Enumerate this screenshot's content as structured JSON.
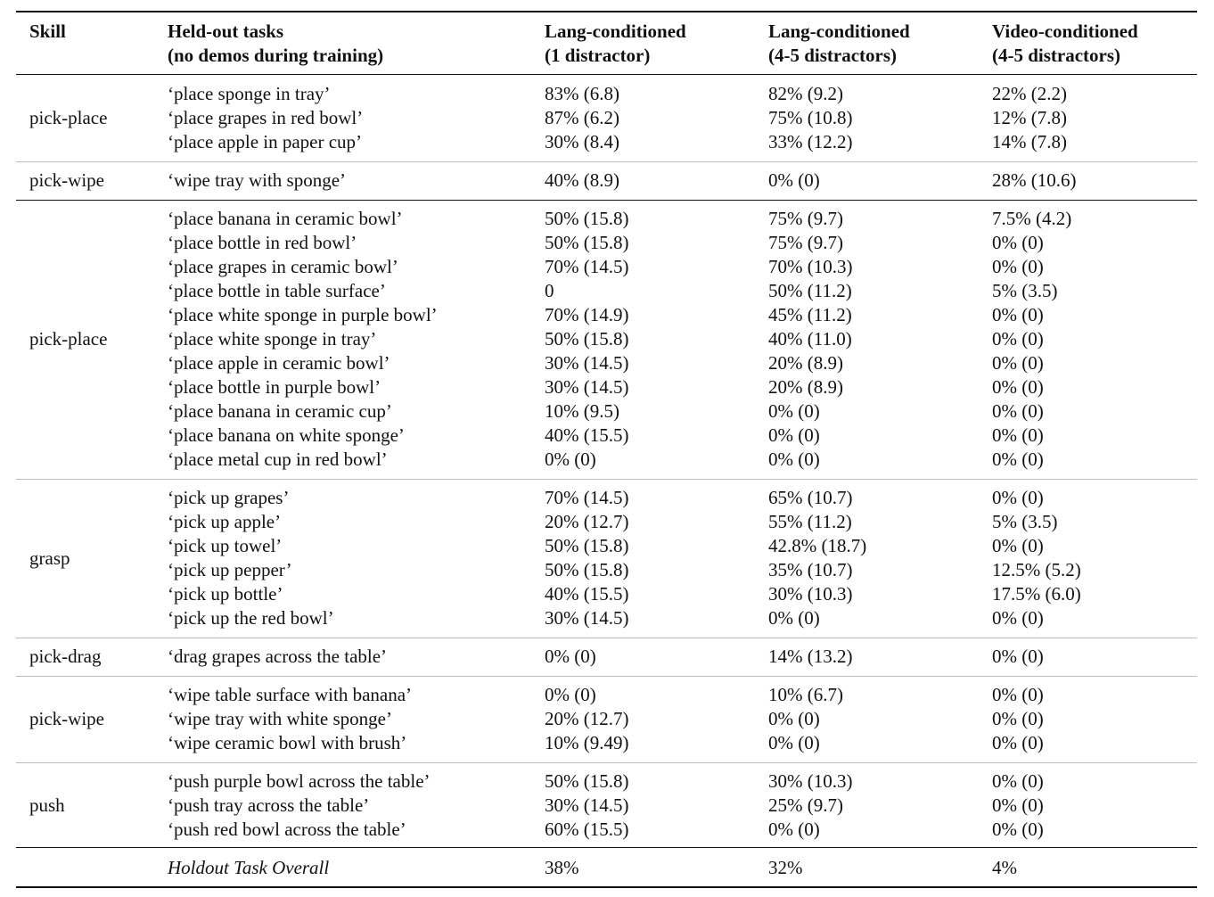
{
  "headers": {
    "skill": "Skill",
    "tasks_line1": "Held-out tasks",
    "tasks_line2": "(no demos during training)",
    "lang1_line1": "Lang-conditioned",
    "lang1_line2": "(1 distractor)",
    "lang45_line1": "Lang-conditioned",
    "lang45_line2": "(4-5 distractors)",
    "video_line1": "Video-conditioned",
    "video_line2": "(4-5 distractors)"
  },
  "groups": [
    {
      "skill": "pick-place",
      "rows": [
        [
          "‘place sponge in tray’",
          "83% (6.8)",
          "82% (9.2)",
          "22% (2.2)"
        ],
        [
          "‘place grapes in red bowl’",
          "87% (6.2)",
          "75% (10.8)",
          "12% (7.8)"
        ],
        [
          "‘place apple in paper cup’",
          "30% (8.4)",
          "33% (12.2)",
          "14% (7.8)"
        ]
      ]
    },
    {
      "skill": "pick-wipe",
      "rows": [
        [
          "‘wipe tray with sponge’",
          "40% (8.9)",
          "0% (0)",
          "28% (10.6)"
        ]
      ]
    },
    {
      "skill": "pick-place",
      "rows": [
        [
          "‘place banana in ceramic bowl’",
          "50% (15.8)",
          "75% (9.7)",
          "7.5% (4.2)"
        ],
        [
          "‘place bottle in red bowl’",
          "50% (15.8)",
          "75% (9.7)",
          "0% (0)"
        ],
        [
          "‘place grapes in ceramic bowl’",
          "70% (14.5)",
          "70% (10.3)",
          "0% (0)"
        ],
        [
          "‘place bottle in table surface’",
          "0",
          "50% (11.2)",
          "5% (3.5)"
        ],
        [
          "‘place white sponge in purple bowl’",
          "70% (14.9)",
          "45% (11.2)",
          "0% (0)"
        ],
        [
          "‘place white sponge in tray’",
          "50% (15.8)",
          "40% (11.0)",
          "0% (0)"
        ],
        [
          "‘place apple in ceramic bowl’",
          "30% (14.5)",
          "20% (8.9)",
          "0% (0)"
        ],
        [
          "‘place bottle in purple bowl’",
          "30% (14.5)",
          "20% (8.9)",
          "0% (0)"
        ],
        [
          "‘place banana in ceramic cup’",
          "10% (9.5)",
          "0% (0)",
          "0% (0)"
        ],
        [
          "‘place banana on white sponge’",
          "40% (15.5)",
          "0% (0)",
          "0% (0)"
        ],
        [
          "‘place metal cup in red bowl’",
          "0% (0)",
          "0% (0)",
          "0% (0)"
        ]
      ]
    },
    {
      "skill": "grasp",
      "rows": [
        [
          "‘pick up grapes’",
          "70% (14.5)",
          "65% (10.7)",
          "0% (0)"
        ],
        [
          "‘pick up apple’",
          "20% (12.7)",
          "55% (11.2)",
          "5% (3.5)"
        ],
        [
          "‘pick up towel’",
          "50% (15.8)",
          "42.8% (18.7)",
          "0% (0)"
        ],
        [
          "‘pick up pepper’",
          "50% (15.8)",
          "35% (10.7)",
          "12.5% (5.2)"
        ],
        [
          "‘pick up bottle’",
          "40% (15.5)",
          "30% (10.3)",
          "17.5% (6.0)"
        ],
        [
          "‘pick up the red bowl’",
          "30% (14.5)",
          "0% (0)",
          "0% (0)"
        ]
      ]
    },
    {
      "skill": "pick-drag",
      "rows": [
        [
          "‘drag grapes across the table’",
          "0% (0)",
          "14% (13.2)",
          "0% (0)"
        ]
      ]
    },
    {
      "skill": "pick-wipe",
      "rows": [
        [
          "‘wipe table surface with banana’",
          "0% (0)",
          "10% (6.7)",
          "0% (0)"
        ],
        [
          "‘wipe tray with white sponge’",
          "20% (12.7)",
          "0% (0)",
          "0% (0)"
        ],
        [
          "‘wipe ceramic bowl with brush’",
          "10% (9.49)",
          "0% (0)",
          "0% (0)"
        ]
      ]
    },
    {
      "skill": "push",
      "rows": [
        [
          "‘push purple bowl across the table’",
          "50% (15.8)",
          "30% (10.3)",
          "0% (0)"
        ],
        [
          "‘push tray across the table’",
          "30% (14.5)",
          "25% (9.7)",
          "0% (0)"
        ],
        [
          "‘push red bowl across the table’",
          "60% (15.5)",
          "0% (0)",
          "0% (0)"
        ]
      ]
    }
  ],
  "overall": {
    "label": "Holdout Task Overall",
    "lang1": "38%",
    "lang45": "32%",
    "video": "4%"
  }
}
